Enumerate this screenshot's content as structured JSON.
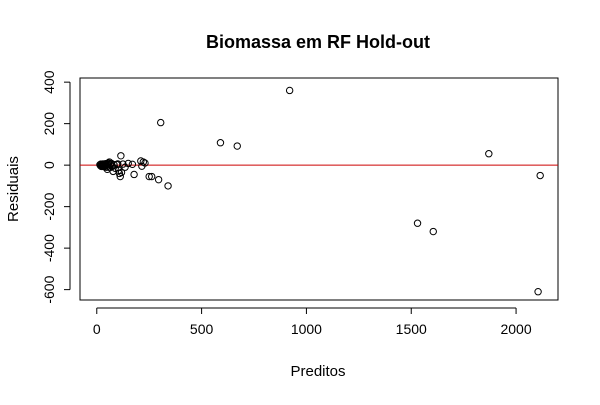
{
  "chart_data": {
    "type": "scatter",
    "title": "Biomassa em RF Hold-out",
    "xlabel": "Preditos",
    "ylabel": "Residuais",
    "xlim": [
      -80,
      2200
    ],
    "ylim": [
      -650,
      420
    ],
    "x_ticks": [
      0,
      500,
      1000,
      1500,
      2000
    ],
    "x_tick_labels": [
      "0",
      "500",
      "1000",
      "1500",
      "2000"
    ],
    "y_ticks": [
      -600,
      -400,
      -200,
      0,
      200,
      400
    ],
    "y_tick_labels": [
      "-600",
      "-400",
      "-200",
      "0",
      "200",
      "400"
    ],
    "reference_line": {
      "y": 0,
      "color": "#cc0000"
    },
    "grid": false,
    "legend": "none",
    "points": [
      [
        15,
        2
      ],
      [
        18,
        -3
      ],
      [
        20,
        5
      ],
      [
        22,
        -6
      ],
      [
        24,
        0
      ],
      [
        26,
        4
      ],
      [
        28,
        -2
      ],
      [
        30,
        6
      ],
      [
        32,
        -4
      ],
      [
        34,
        1
      ],
      [
        36,
        -8
      ],
      [
        38,
        3
      ],
      [
        40,
        -5
      ],
      [
        42,
        7
      ],
      [
        44,
        -1
      ],
      [
        46,
        -10
      ],
      [
        48,
        2
      ],
      [
        50,
        -20
      ],
      [
        52,
        5
      ],
      [
        55,
        10
      ],
      [
        58,
        -3
      ],
      [
        60,
        15
      ],
      [
        63,
        -12
      ],
      [
        66,
        4
      ],
      [
        70,
        8
      ],
      [
        74,
        -6
      ],
      [
        78,
        -30
      ],
      [
        82,
        2
      ],
      [
        88,
        -15
      ],
      [
        95,
        3
      ],
      [
        100,
        6
      ],
      [
        105,
        -25
      ],
      [
        108,
        -40
      ],
      [
        112,
        -55
      ],
      [
        115,
        45
      ],
      [
        118,
        -35
      ],
      [
        125,
        5
      ],
      [
        135,
        -10
      ],
      [
        150,
        8
      ],
      [
        170,
        4
      ],
      [
        178,
        -45
      ],
      [
        210,
        20
      ],
      [
        215,
        -5
      ],
      [
        222,
        15
      ],
      [
        230,
        10
      ],
      [
        250,
        -55
      ],
      [
        262,
        -55
      ],
      [
        295,
        -70
      ],
      [
        305,
        205
      ],
      [
        340,
        -100
      ],
      [
        590,
        108
      ],
      [
        670,
        92
      ],
      [
        920,
        360
      ],
      [
        1530,
        -280
      ],
      [
        1605,
        -320
      ],
      [
        1870,
        55
      ],
      [
        2105,
        -610
      ],
      [
        2115,
        -50
      ]
    ],
    "point_color": "#000000",
    "background": "#ffffff"
  }
}
